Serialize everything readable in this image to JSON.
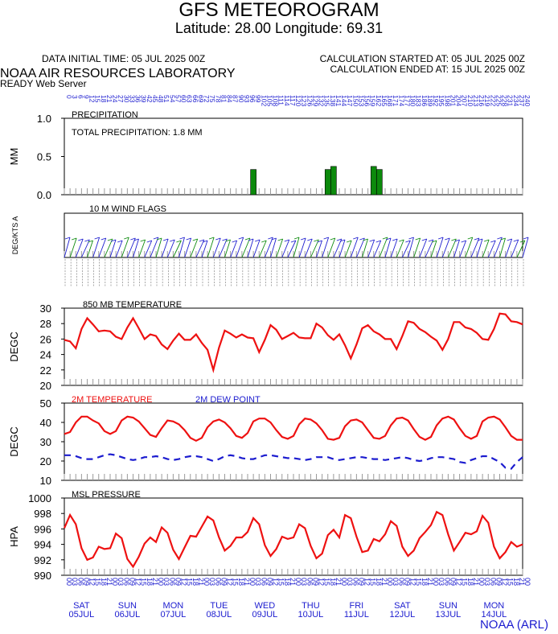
{
  "header": {
    "title": "GFS METEOROGRAM",
    "subtitle": "Latitude: 28.00 Longitude:  69.31",
    "initial_time": "DATA INITIAL TIME: 05 JUL 2025 00Z",
    "calc_started": "CALCULATION STARTED AT: 05 JUL 2025 00Z",
    "calc_ended": "CALCULATION ENDED AT: 15 JUL 2025 00Z",
    "lab": "NOAA AIR RESOURCES LABORATORY",
    "server": "READY Web Server",
    "credit": "NOAA (ARL)"
  },
  "colors": {
    "temperature": "#ee1111",
    "dewpoint": "#1c1ccf",
    "precip": "#0c8a0c",
    "wind_a": "#1c1ccf",
    "wind_b": "#0c8a0c",
    "date_labels": "#1c1ccf"
  },
  "chart_data": [
    {
      "type": "bar",
      "title": "PRECIPITATION",
      "annotation": "TOTAL PRECIPITATION:   1.8 MM",
      "ylabel": "MM",
      "ylim": [
        0,
        1
      ],
      "yticks": [
        "0.0",
        "0.5",
        "1.0"
      ],
      "x_hours": [
        99,
        138,
        141,
        162,
        165
      ],
      "values": [
        0.33,
        0.33,
        0.37,
        0.37,
        0.33
      ]
    },
    {
      "type": "table",
      "title": "10 M  WIND FLAGS",
      "ylabel": "DEG/KTS  A",
      "top_axis_hours": [
        "0",
        "3",
        "6",
        "9",
        "12",
        "15",
        "18",
        "21",
        "24",
        "27",
        "30",
        "33",
        "36",
        "39",
        "42",
        "45",
        "48",
        "51",
        "54",
        "57",
        "60",
        "63",
        "66",
        "69",
        "72",
        "75",
        "78",
        "81",
        "84",
        "87",
        "90",
        "93",
        "96",
        "99",
        "102",
        "105",
        "108",
        "111",
        "114",
        "117",
        "120",
        "123",
        "126",
        "129",
        "132",
        "135",
        "138",
        "141",
        "144",
        "147",
        "150",
        "153",
        "156",
        "159",
        "162",
        "165",
        "168",
        "171",
        "174",
        "177",
        "180",
        "183",
        "186",
        "189",
        "192",
        "195",
        "198",
        "201",
        "204",
        "207",
        "210",
        "213",
        "216",
        "219",
        "222",
        "225",
        "228",
        "231",
        "234",
        "237",
        "240"
      ]
    },
    {
      "type": "line",
      "title": "850 MB  TEMPERATURE",
      "ylabel": "DEGC",
      "ylim": [
        20,
        30
      ],
      "yticks": [
        "20",
        "22",
        "24",
        "26",
        "28",
        "30"
      ],
      "series": [
        {
          "values": [
            25.9,
            25.7,
            24.8,
            27.3,
            28.7,
            27.9,
            27.0,
            27.1,
            27.0,
            26.3,
            26.0,
            27.5,
            28.7,
            27.4,
            26.0,
            26.6,
            26.4,
            25.3,
            24.7,
            25.8,
            26.7,
            25.9,
            25.9,
            26.6,
            25.5,
            24.6,
            22.0,
            24.9,
            27.1,
            26.7,
            26.2,
            26.6,
            26.2,
            26.1,
            24.3,
            25.9,
            27.8,
            27.2,
            26.0,
            26.4,
            26.8,
            26.2,
            26.1,
            26.1,
            28.0,
            27.5,
            26.5,
            25.9,
            26.6,
            25.2,
            23.5,
            25.3,
            27.4,
            27.8,
            27.0,
            26.6,
            26.0,
            26.0,
            24.7,
            26.4,
            28.3,
            28.1,
            27.3,
            26.9,
            26.3,
            25.8,
            24.6,
            26.0,
            28.2,
            28.2,
            27.5,
            27.3,
            26.8,
            26.0,
            25.9,
            27.3,
            29.3,
            29.2,
            28.3,
            28.2,
            27.9
          ]
        }
      ]
    },
    {
      "type": "line",
      "title": "",
      "ylabel": "DEGC",
      "ylim": [
        10,
        50
      ],
      "yticks": [
        "10",
        "20",
        "30",
        "40",
        "50"
      ],
      "series": [
        {
          "name": "2M TEMPERATURE",
          "values": [
            34,
            35,
            40,
            43,
            43,
            41,
            39.5,
            35.5,
            34,
            35.5,
            41,
            43,
            42.5,
            40.5,
            37,
            33.5,
            32.5,
            37,
            41,
            40.5,
            39,
            36,
            32,
            30.5,
            32,
            37.5,
            40.5,
            41.5,
            40,
            37,
            33,
            32,
            34.5,
            40.5,
            42,
            42,
            40,
            36,
            32.5,
            31.5,
            33,
            39,
            42,
            41.5,
            39.5,
            36,
            31.5,
            31,
            32,
            38,
            41,
            41.5,
            40,
            36,
            32,
            31.5,
            33,
            38.5,
            42,
            42.5,
            41,
            36.5,
            32.5,
            31,
            32.5,
            38.5,
            42,
            43,
            41.5,
            37,
            33,
            31.5,
            33,
            40.5,
            42.5,
            43,
            41.5,
            37.5,
            33,
            31,
            31
          ]
        },
        {
          "name": "2M  DEW POINT",
          "values": [
            23,
            23,
            22.5,
            21.5,
            21,
            21,
            22,
            23,
            23.5,
            23,
            22,
            21,
            20.5,
            21,
            22,
            22,
            22.5,
            22,
            21,
            20.5,
            21,
            22,
            22.5,
            22.5,
            22,
            21,
            20,
            21,
            22.5,
            23,
            22.5,
            21.5,
            21,
            21,
            22,
            23,
            23,
            22.5,
            22,
            21.5,
            21.5,
            21,
            20.5,
            21,
            22,
            22,
            22,
            21,
            20.5,
            21,
            21.5,
            22,
            22,
            21.5,
            21,
            21,
            20.5,
            21,
            21.5,
            22,
            21.5,
            20.5,
            20,
            20.5,
            21.5,
            22,
            22,
            21.5,
            21,
            19.5,
            19,
            20.5,
            21.5,
            22.5,
            22.5,
            21,
            19.5,
            16.5,
            16,
            19.5,
            22
          ]
        }
      ]
    },
    {
      "type": "line",
      "title": "MSL PRESSURE",
      "ylabel": "HPA",
      "ylim": [
        990,
        1000
      ],
      "yticks": [
        "990",
        "992",
        "994",
        "996",
        "998",
        "1000"
      ],
      "series": [
        {
          "values": [
            996.1,
            997.8,
            996.6,
            993.5,
            992.0,
            992.3,
            993.7,
            993.4,
            993.5,
            995.4,
            994.8,
            992.1,
            991.1,
            992.4,
            994.1,
            994.9,
            994.3,
            996.2,
            995.5,
            993.3,
            992.1,
            993.6,
            995.1,
            995.0,
            996.3,
            997.6,
            997.1,
            994.9,
            993.2,
            993.8,
            994.9,
            994.9,
            995.6,
            997.4,
            996.6,
            993.9,
            992.5,
            993.4,
            995.0,
            994.7,
            994.9,
            996.6,
            996.1,
            993.8,
            992.2,
            992.8,
            995.2,
            995.9,
            994.9,
            997.8,
            997.4,
            995.0,
            993.0,
            993.2,
            994.7,
            994.4,
            995.3,
            997.0,
            996.4,
            993.7,
            992.5,
            993.2,
            994.8,
            995.6,
            996.5,
            998.2,
            997.8,
            995.3,
            993.2,
            994.3,
            995.5,
            995.3,
            995.7,
            997.7,
            996.8,
            993.7,
            992.2,
            993.0,
            994.3,
            993.7,
            994.0
          ]
        }
      ]
    }
  ],
  "time_axis": {
    "hour_labels": [
      "00",
      "03",
      "06",
      "09",
      "12",
      "15",
      "18",
      "21",
      "00",
      "03",
      "06",
      "09",
      "12",
      "15",
      "18",
      "21",
      "00",
      "03",
      "06",
      "09",
      "12",
      "15",
      "18",
      "21",
      "00",
      "03",
      "06",
      "09",
      "12",
      "15",
      "18",
      "21",
      "00",
      "03",
      "06",
      "09",
      "12",
      "15",
      "18",
      "21",
      "00",
      "03",
      "06",
      "09",
      "12",
      "15",
      "18",
      "21",
      "00",
      "03",
      "06",
      "09",
      "12",
      "15",
      "18",
      "21",
      "00",
      "03",
      "06",
      "09",
      "12",
      "15",
      "18",
      "21",
      "00",
      "03",
      "06",
      "09",
      "12",
      "15",
      "18",
      "21",
      "00",
      "03",
      "06",
      "09",
      "12",
      "15",
      "18",
      "21",
      "00"
    ],
    "days": [
      {
        "weekday": "SAT",
        "date": "05JUL"
      },
      {
        "weekday": "SUN",
        "date": "06JUL"
      },
      {
        "weekday": "MON",
        "date": "07JUL"
      },
      {
        "weekday": "TUE",
        "date": "08JUL"
      },
      {
        "weekday": "WED",
        "date": "09JUL"
      },
      {
        "weekday": "THU",
        "date": "10JUL"
      },
      {
        "weekday": "FRI",
        "date": "11JUL"
      },
      {
        "weekday": "SAT",
        "date": "12JUL"
      },
      {
        "weekday": "SUN",
        "date": "13JUL"
      },
      {
        "weekday": "MON",
        "date": "14JUL"
      }
    ]
  }
}
